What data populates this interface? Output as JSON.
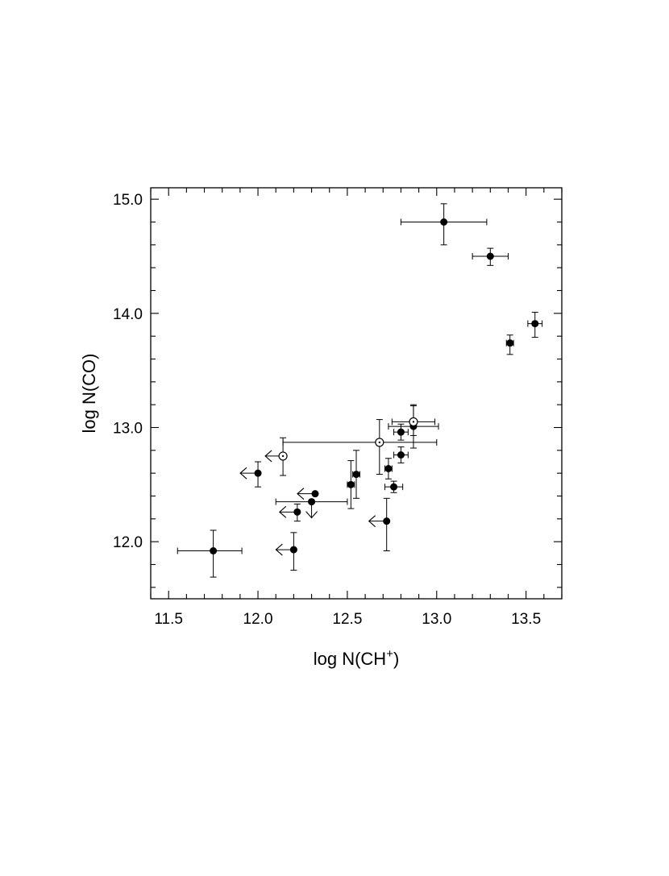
{
  "chart_data": {
    "type": "scatter",
    "title": "",
    "xlabel": {
      "base": "log N(CH",
      "sup": "+",
      "close": ")"
    },
    "ylabel": "log N(CO)",
    "xlim": [
      11.4,
      13.7
    ],
    "ylim": [
      11.5,
      15.1
    ],
    "x_ticks": [
      {
        "value": 11.5,
        "label": "11.5"
      },
      {
        "value": 12.0,
        "label": "12.0"
      },
      {
        "value": 12.5,
        "label": "12.5"
      },
      {
        "value": 13.0,
        "label": "13.0"
      },
      {
        "value": 13.5,
        "label": "13.5"
      }
    ],
    "y_ticks": [
      {
        "value": 12.0,
        "label": "12.0"
      },
      {
        "value": 13.0,
        "label": "13.0"
      },
      {
        "value": 14.0,
        "label": "14.0"
      },
      {
        "value": 15.0,
        "label": "15.0"
      }
    ],
    "x_minor_step": 0.1,
    "y_minor_step": 0.2,
    "grid": false,
    "legend": "none",
    "points": [
      {
        "x": 13.04,
        "y": 14.8,
        "xerr": [
          0.24,
          0.24
        ],
        "yerr": [
          0.2,
          0.16
        ],
        "marker": "filled"
      },
      {
        "x": 13.3,
        "y": 14.5,
        "xerr": [
          0.1,
          0.1
        ],
        "yerr": [
          0.08,
          0.07
        ],
        "marker": "filled"
      },
      {
        "x": 13.55,
        "y": 13.91,
        "xerr": [
          0.04,
          0.04
        ],
        "yerr": [
          0.12,
          0.1
        ],
        "marker": "filled"
      },
      {
        "x": 13.41,
        "y": 13.74,
        "xerr": [
          0.02,
          0.02
        ],
        "yerr": [
          0.1,
          0.07
        ],
        "marker": "filled"
      },
      {
        "x": 12.87,
        "y": 13.01,
        "xerr": [
          0.14,
          0.14
        ],
        "yerr": [
          0.19,
          0.19
        ],
        "marker": "filled"
      },
      {
        "x": 12.8,
        "y": 12.96,
        "xerr": [
          0.04,
          0.04
        ],
        "yerr": [
          0.07,
          0.07
        ],
        "marker": "filled"
      },
      {
        "x": 12.8,
        "y": 12.76,
        "xerr": [
          0.04,
          0.04
        ],
        "yerr": [
          0.07,
          0.07
        ],
        "marker": "filled"
      },
      {
        "x": 12.73,
        "y": 12.64,
        "xerr": [
          0.02,
          0.02
        ],
        "yerr": [
          0.09,
          0.09
        ],
        "marker": "filled"
      },
      {
        "x": 12.76,
        "y": 12.48,
        "xerr": [
          0.05,
          0.05
        ],
        "yerr": [
          0.05,
          0.05
        ],
        "marker": "filled"
      },
      {
        "x": 12.55,
        "y": 12.59,
        "xerr": [
          0.02,
          0.02
        ],
        "yerr": [
          0.21,
          0.21
        ],
        "marker": "filled"
      },
      {
        "x": 12.52,
        "y": 12.5,
        "xerr": [
          0.02,
          0.02
        ],
        "yerr": [
          0.21,
          0.21
        ],
        "marker": "filled"
      },
      {
        "x": 12.72,
        "y": 12.18,
        "xerr": [
          0,
          0
        ],
        "yerr": [
          0.26,
          0.2
        ],
        "marker": "filled",
        "limit": "x-upper"
      },
      {
        "x": 12.0,
        "y": 12.6,
        "xerr": [
          0,
          0
        ],
        "yerr": [
          0.12,
          0.1
        ],
        "marker": "filled",
        "limit": "x-upper"
      },
      {
        "x": 12.32,
        "y": 12.42,
        "xerr": [
          0,
          0
        ],
        "yerr": [
          0,
          0
        ],
        "marker": "filled",
        "limit": "x-upper"
      },
      {
        "x": 12.3,
        "y": 12.35,
        "xerr": [
          0.2,
          0.2
        ],
        "yerr": [
          0,
          0
        ],
        "marker": "filled",
        "limit": "y-upper"
      },
      {
        "x": 12.22,
        "y": 12.26,
        "xerr": [
          0,
          0
        ],
        "yerr": [
          0.08,
          0.07
        ],
        "marker": "filled",
        "limit": "x-upper"
      },
      {
        "x": 12.2,
        "y": 11.93,
        "xerr": [
          0,
          0
        ],
        "yerr": [
          0.18,
          0.15
        ],
        "marker": "filled",
        "limit": "x-upper"
      },
      {
        "x": 11.75,
        "y": 11.92,
        "xerr": [
          0.2,
          0.16
        ],
        "yerr": [
          0.23,
          0.18
        ],
        "marker": "filled"
      },
      {
        "x": 12.87,
        "y": 13.05,
        "xerr": [
          0.12,
          0.12
        ],
        "yerr": [
          0.12,
          0.14
        ],
        "marker": "open"
      },
      {
        "x": 12.68,
        "y": 12.87,
        "xerr": [
          0.54,
          0.32
        ],
        "yerr": [
          0.28,
          0.2
        ],
        "marker": "open"
      },
      {
        "x": 12.14,
        "y": 12.75,
        "xerr": [
          0,
          0
        ],
        "yerr": [
          0.17,
          0.16
        ],
        "marker": "open",
        "limit": "x-upper"
      }
    ]
  }
}
